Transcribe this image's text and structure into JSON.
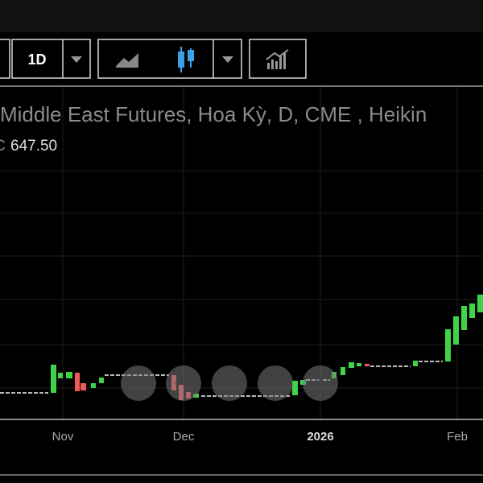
{
  "toolbar": {
    "interval": "1D"
  },
  "legend": {
    "title": "Middle East Futures, Hoa Kỳ, D, CME , Heikin",
    "close_label": "C",
    "close": "647.50"
  },
  "x_axis": {
    "labels": [
      "Nov",
      "Dec",
      "2026",
      "Feb"
    ]
  }
}
